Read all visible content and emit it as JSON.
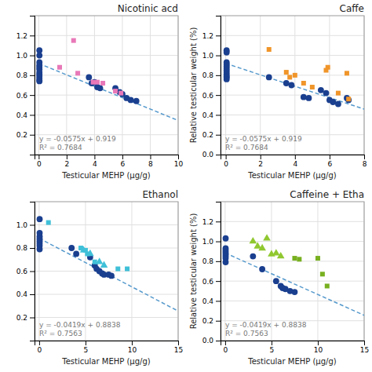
{
  "chart_data": [
    {
      "type": "scatter",
      "title": "Nicotinic acd",
      "xlabel": "Testicular MEHP (μg/g)",
      "xlim": [
        -0.3,
        10
      ],
      "ylim": [
        0,
        1.4
      ],
      "xticks": [
        0,
        2,
        4,
        6,
        8,
        10
      ],
      "yticks": [
        0.2,
        0.4,
        0.6,
        0.8,
        {
          "value": 1.0,
          "label": "1.0"
        },
        1.2
      ],
      "grid": true,
      "annotations": [
        "y = -0.0575x + 0.919",
        "R² = 0.7684"
      ],
      "series": [
        {
          "type": "line",
          "line_style": "dashed",
          "color": "#5599cc",
          "x": [
            0,
            10
          ],
          "values": [
            0.919,
            0.344
          ]
        },
        {
          "type": "scatter",
          "marker": "circle",
          "color": "#1a3f8f",
          "x": [
            0.05,
            0.05,
            0.05,
            0.05,
            0.05,
            0.05,
            0.05,
            0.05,
            0.05,
            0.05,
            0.05,
            0.05,
            3.6,
            3.8,
            4.0,
            4.2,
            4.4,
            5.5,
            5.8,
            6.0,
            6.3,
            6.6,
            7.0
          ],
          "values": [
            1.05,
            1.0,
            0.93,
            0.9,
            0.88,
            0.86,
            0.83,
            0.81,
            0.79,
            0.77,
            0.75,
            0.74,
            0.78,
            0.72,
            0.73,
            0.68,
            0.67,
            0.67,
            0.63,
            0.61,
            0.57,
            0.55,
            0.54
          ]
        },
        {
          "type": "scatter",
          "marker": "square",
          "color": "#e878b8",
          "x": [
            1.5,
            2.5,
            2.8,
            3.9,
            4.2,
            4.6,
            5.5,
            5.9
          ],
          "values": [
            0.88,
            1.15,
            0.82,
            0.73,
            0.73,
            0.72,
            0.64,
            0.62
          ]
        }
      ]
    },
    {
      "type": "scatter",
      "title": "Caffe",
      "xlabel": "Testicular MEHP (μg/g)",
      "ylabel": "Relative testicular weight (%)",
      "xlim": [
        -0.3,
        8
      ],
      "ylim": [
        0,
        1.4
      ],
      "xticks": [
        0,
        2,
        4,
        6,
        8
      ],
      "yticks": [
        {
          "value": 0,
          "label": "0.0"
        },
        0.2,
        0.4,
        0.6,
        0.8,
        {
          "value": 1.0,
          "label": "1.0"
        },
        1.2
      ],
      "grid": true,
      "annotations": [
        "y = -0.0575x + 0.919",
        "R² = 0.7684"
      ],
      "series": [
        {
          "type": "line",
          "line_style": "dashed",
          "color": "#5599cc",
          "x": [
            0,
            8
          ],
          "values": [
            0.919,
            0.459
          ]
        },
        {
          "type": "scatter",
          "marker": "circle",
          "color": "#1a3f8f",
          "x": [
            0.05,
            0.05,
            0.05,
            0.05,
            0.05,
            0.05,
            0.05,
            0.05,
            0.05,
            0.05,
            0.05,
            0.05,
            2.5,
            3.5,
            3.8,
            4.5,
            4.8,
            5.5,
            5.8,
            6.0,
            6.2,
            6.5,
            7.0,
            7.1
          ],
          "values": [
            1.05,
            1.03,
            0.93,
            0.91,
            0.89,
            0.87,
            0.85,
            0.83,
            0.81,
            0.79,
            0.78,
            0.76,
            0.78,
            0.72,
            0.7,
            0.58,
            0.57,
            0.65,
            0.62,
            0.55,
            0.53,
            0.51,
            0.57,
            0.55
          ]
        },
        {
          "type": "scatter",
          "marker": "square",
          "color": "#f0952a",
          "x": [
            2.5,
            3.5,
            3.7,
            4.0,
            4.5,
            5.0,
            5.8,
            5.9,
            6.5,
            7.0,
            7.1
          ],
          "values": [
            1.06,
            0.83,
            0.78,
            0.8,
            0.72,
            0.68,
            0.85,
            0.88,
            0.62,
            0.82,
            0.56
          ]
        }
      ]
    },
    {
      "type": "scatter",
      "title": "Ethanol",
      "xlabel": "Testicular MEHP (μg/g)",
      "xlim": [
        -0.5,
        15
      ],
      "ylim": [
        0,
        1.2
      ],
      "xticks": [
        0,
        5,
        10,
        15
      ],
      "yticks": [
        0.2,
        0.4,
        0.6,
        0.8,
        {
          "value": 1.0,
          "label": "1.0"
        }
      ],
      "grid": true,
      "annotations": [
        "y = -0.0419x + 0.8838",
        "R² = 0.7563"
      ],
      "series": [
        {
          "type": "line",
          "line_style": "dashed",
          "color": "#5599cc",
          "x": [
            0,
            15
          ],
          "values": [
            0.8838,
            0.2553
          ]
        },
        {
          "type": "scatter",
          "marker": "circle",
          "color": "#1a3f8f",
          "x": [
            0.05,
            0.05,
            0.05,
            0.05,
            0.05,
            0.05,
            0.05,
            0.05,
            3.5,
            4.0,
            5.5,
            6.0,
            6.2,
            6.5,
            6.8,
            7.0,
            7.5,
            7.8
          ],
          "values": [
            1.05,
            0.93,
            0.9,
            0.88,
            0.86,
            0.84,
            0.82,
            0.79,
            0.8,
            0.75,
            0.72,
            0.65,
            0.62,
            0.6,
            0.58,
            0.57,
            0.57,
            0.56
          ]
        },
        {
          "type": "scatter",
          "marker": "square",
          "color": "#40c0d8",
          "x": [
            1.0,
            4.5,
            5.0,
            5.2,
            6.0,
            8.5,
            9.5
          ],
          "values": [
            1.02,
            0.8,
            0.78,
            0.75,
            0.68,
            0.62,
            0.62
          ]
        },
        {
          "type": "scatter",
          "marker": "triangle",
          "color": "#40c0d8",
          "x": [
            4.8,
            5.5,
            6.5,
            7.0
          ],
          "values": [
            0.78,
            0.75,
            0.68,
            0.65
          ]
        }
      ]
    },
    {
      "type": "scatter",
      "title": "Caffeine + Etha",
      "xlabel": "Testicular MEHP (μg/g)",
      "ylabel": "Relative testicular weight (%)",
      "xlim": [
        -0.5,
        15
      ],
      "ylim": [
        0,
        1.4
      ],
      "xticks": [
        0,
        5,
        10,
        15
      ],
      "yticks": [
        {
          "value": 0,
          "label": "0.0"
        },
        0.2,
        0.4,
        0.6,
        0.8,
        {
          "value": 1.0,
          "label": "1.0"
        },
        1.2
      ],
      "grid": true,
      "annotations": [
        "y = -0.0419x + 0.8838",
        "R² = 0.7563"
      ],
      "series": [
        {
          "type": "line",
          "line_style": "dashed",
          "color": "#5599cc",
          "x": [
            0,
            15
          ],
          "values": [
            0.8838,
            0.2553
          ]
        },
        {
          "type": "scatter",
          "marker": "circle",
          "color": "#1a3f8f",
          "x": [
            0.05,
            0.05,
            0.05,
            0.05,
            0.05,
            0.05,
            0.05,
            0.05,
            3.0,
            4.0,
            5.5,
            6.0,
            6.2,
            6.5,
            7.0,
            7.5
          ],
          "values": [
            1.03,
            0.93,
            0.91,
            0.89,
            0.87,
            0.85,
            0.83,
            0.79,
            0.85,
            0.72,
            0.6,
            0.55,
            0.53,
            0.52,
            0.5,
            0.49
          ]
        },
        {
          "type": "scatter",
          "marker": "triangle",
          "color": "#90c830",
          "x": [
            3.0,
            3.5,
            4.0,
            4.5,
            5.0,
            5.5,
            6.0
          ],
          "values": [
            1.0,
            0.95,
            0.93,
            1.03,
            0.87,
            0.88,
            0.85
          ]
        },
        {
          "type": "scatter",
          "marker": "square",
          "color": "#78b020",
          "x": [
            7.5,
            8.0,
            10.0,
            10.5,
            11.0
          ],
          "values": [
            0.83,
            0.82,
            0.83,
            0.67,
            0.55
          ]
        }
      ]
    }
  ]
}
